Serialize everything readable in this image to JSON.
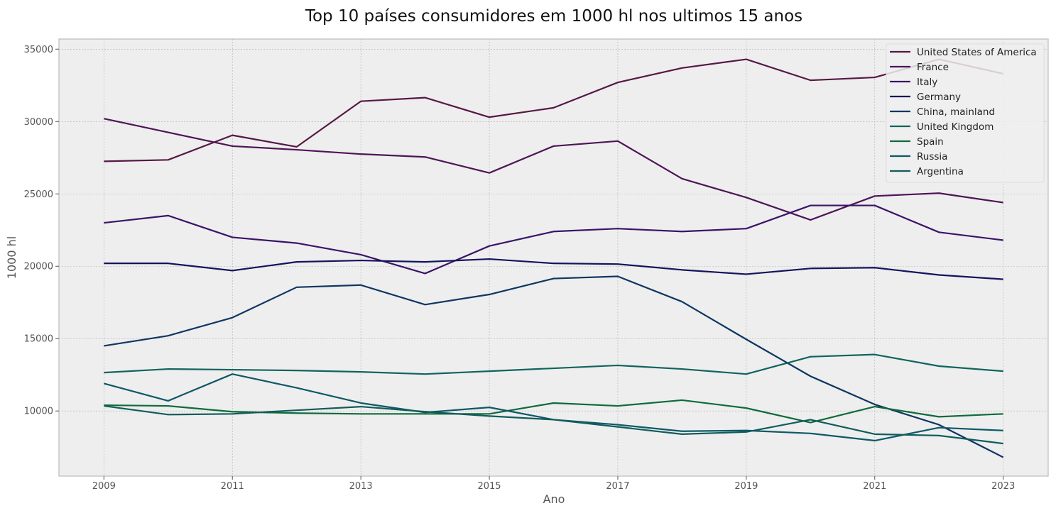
{
  "chart_data": {
    "type": "line",
    "title": "Top 10 países consumidores em 1000 hl nos ultimos 15 anos",
    "xlabel": "Ano",
    "ylabel": "1000 hl",
    "x": [
      2009,
      2010,
      2011,
      2012,
      2013,
      2014,
      2015,
      2016,
      2017,
      2018,
      2019,
      2020,
      2021,
      2022,
      2023
    ],
    "x_ticks": [
      "2009",
      "2011",
      "2013",
      "2015",
      "2017",
      "2019",
      "2021",
      "2023"
    ],
    "y_ticks": [
      "10000",
      "15000",
      "20000",
      "25000",
      "30000",
      "35000"
    ],
    "xlim": [
      2008.3,
      2023.7
    ],
    "ylim": [
      5500,
      35700
    ],
    "grid": true,
    "legend_position": "top-right",
    "series": [
      {
        "name": "United States of America",
        "color": "#561845",
        "values": [
          27250,
          27350,
          29050,
          28250,
          31400,
          31650,
          30300,
          30950,
          32700,
          33700,
          34300,
          32850,
          33050,
          34300,
          33300
        ]
      },
      {
        "name": "France",
        "color": "#4f1457",
        "values": [
          30200,
          29250,
          28300,
          28050,
          27750,
          27550,
          26450,
          28300,
          28650,
          26050,
          24750,
          23200,
          24850,
          25050,
          24400
        ]
      },
      {
        "name": "Italy",
        "color": "#3a1468",
        "values": [
          23000,
          23500,
          22000,
          21600,
          20800,
          19500,
          21400,
          22400,
          22600,
          22400,
          22600,
          24200,
          24200,
          22350,
          21800
        ]
      },
      {
        "name": "Germany",
        "color": "#15135e",
        "values": [
          20200,
          20200,
          19700,
          20300,
          20400,
          20300,
          20500,
          20200,
          20150,
          19750,
          19450,
          19850,
          19900,
          19400,
          19100
        ]
      },
      {
        "name": "China, mainland",
        "color": "#0e3662",
        "values": [
          14500,
          15200,
          16450,
          18550,
          18700,
          17350,
          18050,
          19150,
          19300,
          17550,
          14950,
          12400,
          10450,
          9050,
          6800
        ]
      },
      {
        "name": "United Kingdom",
        "color": "#10645e",
        "values": [
          12650,
          12900,
          12850,
          12800,
          12700,
          12550,
          12750,
          12950,
          13150,
          12900,
          12550,
          13750,
          13900,
          13100,
          12750
        ]
      },
      {
        "name": "Spain",
        "color": "#0f6b3b",
        "values": [
          10400,
          10350,
          9950,
          9850,
          9800,
          9800,
          9800,
          10550,
          10350,
          10750,
          10200,
          9200,
          10300,
          9600,
          9800
        ]
      },
      {
        "name": "Russia",
        "color": "#0f5868",
        "values": [
          11900,
          10700,
          12550,
          11600,
          10550,
          9900,
          10250,
          9400,
          9050,
          8600,
          8650,
          8450,
          7950,
          8850,
          8650
        ]
      },
      {
        "name": "Argentina",
        "color": "#115c5c",
        "values": [
          10350,
          9750,
          9800,
          10050,
          10300,
          9950,
          9650,
          9400,
          8900,
          8400,
          8550,
          9400,
          8400,
          8300,
          7750
        ]
      }
    ]
  },
  "colors": {
    "plot_background": "#eeeeee",
    "grid": "#b0b0b0",
    "frame": "#bcbcbc"
  }
}
